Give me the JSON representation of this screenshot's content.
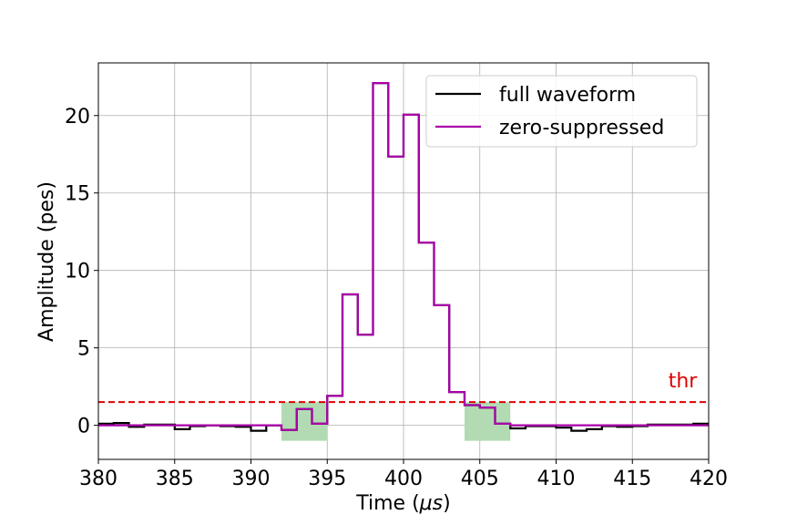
{
  "chart_data": {
    "type": "line",
    "title": "",
    "xlabel": "Time (",
    "xlabel_unit": "μs",
    "xlabel_close": ")",
    "ylabel": "Amplitude (pes)",
    "xlim": [
      380,
      420
    ],
    "ylim": [
      -2.2,
      23.4
    ],
    "x_ticks": [
      380,
      385,
      390,
      395,
      400,
      405,
      410,
      415,
      420
    ],
    "x_tick_labels": [
      "380",
      "385",
      "390",
      "395",
      "400",
      "405",
      "410",
      "415",
      "420"
    ],
    "y_ticks": [
      0,
      5,
      10,
      15,
      20
    ],
    "y_tick_labels": [
      "0",
      "5",
      "10",
      "15",
      "20"
    ],
    "grid": true,
    "legend_position": "top-right",
    "series": [
      {
        "name": "full waveform",
        "color": "#000000",
        "step": "post",
        "x": [
          380,
          381,
          382,
          383,
          384,
          385,
          386,
          387,
          388,
          389,
          390,
          391,
          392,
          393,
          394,
          395,
          396,
          397,
          398,
          399,
          400,
          401,
          402,
          403,
          404,
          405,
          406,
          407,
          408,
          409,
          410,
          411,
          412,
          413,
          414,
          415,
          416,
          417,
          418,
          419
        ],
        "y": [
          0.1,
          0.15,
          -0.1,
          0.05,
          0.05,
          -0.25,
          -0.05,
          0.0,
          -0.05,
          -0.1,
          -0.35,
          0.0,
          -0.3,
          1.05,
          0.1,
          1.9,
          8.45,
          5.85,
          22.1,
          17.35,
          20.05,
          11.8,
          7.75,
          2.15,
          1.3,
          1.15,
          0.1,
          -0.2,
          -0.05,
          -0.05,
          -0.15,
          -0.35,
          -0.25,
          -0.05,
          -0.1,
          -0.05,
          0.05,
          0.05,
          0.05,
          0.1
        ]
      },
      {
        "name": "zero-suppressed",
        "color": "#aa00aa",
        "step": "post",
        "x": [
          380,
          381,
          382,
          383,
          384,
          385,
          386,
          387,
          388,
          389,
          390,
          391,
          392,
          393,
          394,
          395,
          396,
          397,
          398,
          399,
          400,
          401,
          402,
          403,
          404,
          405,
          406,
          407,
          408,
          409,
          410,
          411,
          412,
          413,
          414,
          415,
          416,
          417,
          418,
          419
        ],
        "y": [
          0,
          0,
          0,
          0,
          0,
          0,
          0,
          0,
          0,
          0,
          0,
          0,
          -0.3,
          1.05,
          0.1,
          1.9,
          8.45,
          5.85,
          22.1,
          17.35,
          20.05,
          11.8,
          7.75,
          2.15,
          1.3,
          1.15,
          0.1,
          0,
          0,
          0,
          0,
          0,
          0,
          0,
          0,
          0,
          0,
          0,
          0,
          0
        ]
      }
    ],
    "threshold": {
      "value": 1.5,
      "label": "thr",
      "color": "#e00000"
    },
    "shaded_regions": [
      {
        "x0": 392,
        "x1": 395,
        "y0": -1,
        "y1": 1.5,
        "color": "#b3dbb3"
      },
      {
        "x0": 404,
        "x1": 407,
        "y0": -1,
        "y1": 1.5,
        "color": "#b3dbb3"
      }
    ]
  }
}
